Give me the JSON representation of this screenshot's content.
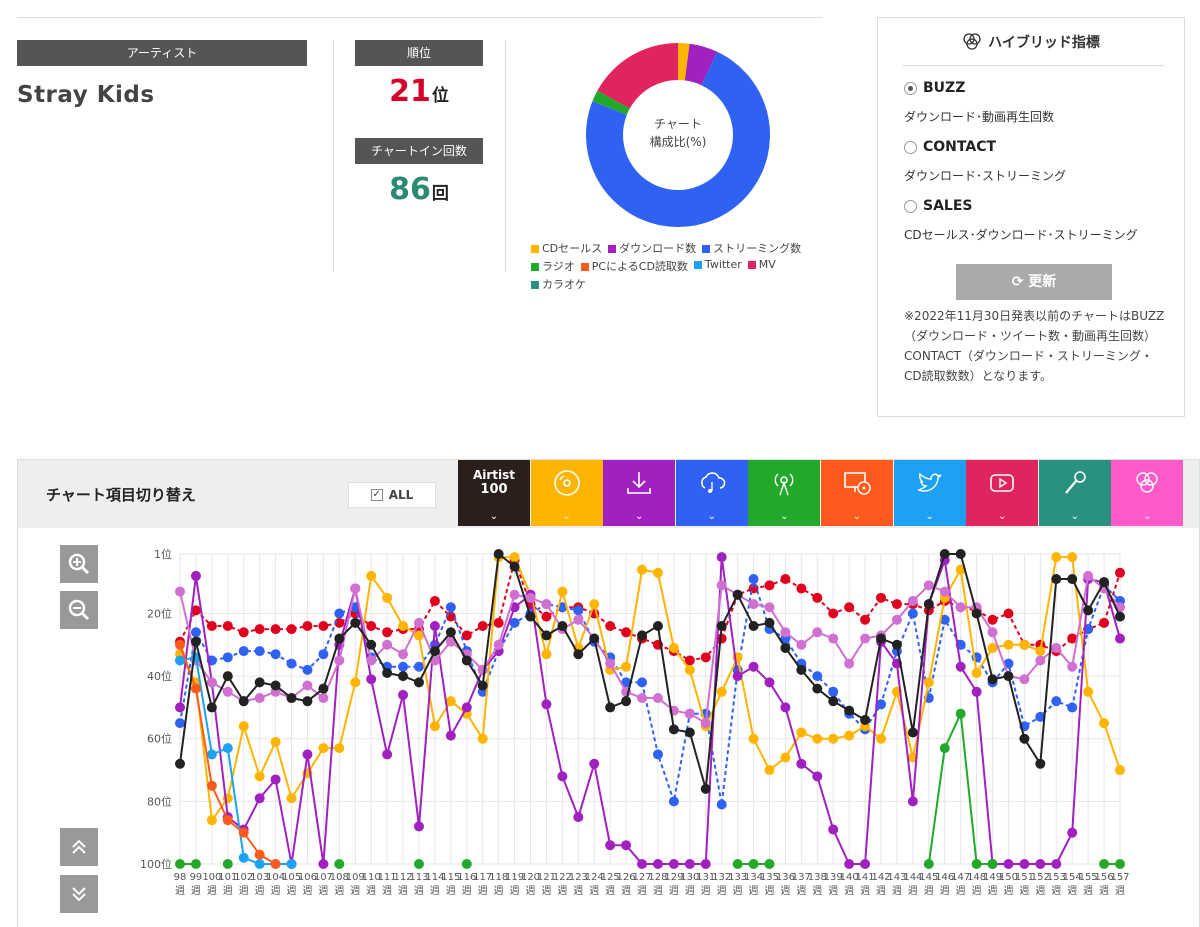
{
  "artist": {
    "header": "アーティスト",
    "name": "Stray Kids"
  },
  "rank": {
    "header": "順位",
    "value": "21",
    "unit": "位"
  },
  "chartin": {
    "header": "チャートイン回数",
    "value": "86",
    "unit": "回"
  },
  "donut": {
    "center_line1": "チャート",
    "center_line2": "構成比(%)",
    "legend": [
      {
        "label": "CDセールス",
        "color": "#ffb400"
      },
      {
        "label": "ダウンロード数",
        "color": "#a020c0"
      },
      {
        "label": "ストリーミング数",
        "color": "#2f62f3"
      },
      {
        "label": "ラジオ",
        "color": "#22a82a"
      },
      {
        "label": "PCによるCD読取数",
        "color": "#ff5a1e"
      },
      {
        "label": "Twitter",
        "color": "#1da1f2"
      },
      {
        "label": "MV",
        "color": "#e0245e"
      },
      {
        "label": "カラオケ",
        "color": "#2a9080"
      }
    ]
  },
  "hybrid": {
    "title": "ハイブリッド指標",
    "options": [
      {
        "label": "BUZZ",
        "desc": "ダウンロード･動画再生回数",
        "selected": true
      },
      {
        "label": "CONTACT",
        "desc": "ダウンロード･ストリーミング",
        "selected": false
      },
      {
        "label": "SALES",
        "desc": "CDセールス･ダウンロード･ストリーミング",
        "selected": false
      }
    ],
    "refresh_label": "更新",
    "note": "※2022年11月30日発表以前のチャートはBUZZ（ダウンロード・ツイート数・動画再生回数）CONTACT（ダウンロード・ストリーミング・CD読取数数）となります。"
  },
  "panel": {
    "title": "チャート項目切り替え",
    "all_label": "ALL",
    "tabs": [
      {
        "label": "Airtist",
        "label2": "100",
        "icon": "text",
        "color": "#2a1f1a"
      },
      {
        "icon": "cd-icon",
        "color": "#ffb400"
      },
      {
        "icon": "download-icon",
        "color": "#a020c0"
      },
      {
        "icon": "cloud-music-icon",
        "color": "#2f62f3"
      },
      {
        "icon": "radio-antenna-icon",
        "color": "#22a82a"
      },
      {
        "icon": "pc-cd-icon",
        "color": "#ff5a1e"
      },
      {
        "icon": "twitter-icon",
        "color": "#1da1f2"
      },
      {
        "icon": "youtube-icon",
        "color": "#e0245e"
      },
      {
        "icon": "microphone-icon",
        "color": "#2a9080"
      },
      {
        "icon": "hybrid-icon",
        "color": "#ff5ac8"
      }
    ]
  },
  "chart_data": {
    "type": "line",
    "y_axis_inverted": true,
    "ylim": [
      100,
      1
    ],
    "yticks": [
      "1位",
      "20位",
      "40位",
      "60位",
      "80位",
      "100位"
    ],
    "x_labels": [
      "98",
      "99",
      "100",
      "101",
      "102",
      "103",
      "104",
      "105",
      "106",
      "107",
      "108",
      "109",
      "110",
      "111",
      "112",
      "113",
      "114",
      "115",
      "116",
      "117",
      "118",
      "119",
      "120",
      "121",
      "122",
      "123",
      "124",
      "125",
      "126",
      "127",
      "128",
      "129",
      "130",
      "131",
      "132",
      "133",
      "134",
      "135",
      "136",
      "137",
      "138",
      "139",
      "140",
      "141",
      "142",
      "143",
      "144",
      "145",
      "146",
      "147",
      "148",
      "149",
      "150",
      "151",
      "152",
      "153",
      "154",
      "155",
      "156",
      "157"
    ],
    "x_suffix": "週",
    "series": [
      {
        "color": "#e0001e",
        "values": [
          29,
          19,
          24,
          24,
          26,
          25,
          25,
          25,
          24,
          24,
          23,
          20,
          24,
          26,
          25,
          25,
          16,
          21,
          27,
          24,
          23,
          3,
          17,
          21,
          18,
          18,
          20,
          24,
          26,
          28,
          30,
          32,
          35,
          34,
          28,
          14,
          12,
          11,
          9,
          12,
          15,
          20,
          18,
          22,
          15,
          17,
          17,
          19,
          16,
          18,
          19,
          22,
          20,
          30,
          30,
          32,
          28,
          25,
          23,
          7
        ],
        "dashed": true
      },
      {
        "color": "#2f62f3",
        "values": [
          55,
          26,
          35,
          34,
          32,
          32,
          33,
          36,
          38,
          33,
          20,
          18,
          34,
          37,
          37,
          37,
          30,
          18,
          32,
          45,
          32,
          23,
          20,
          17,
          18,
          19,
          29,
          34,
          42,
          42,
          65,
          80,
          52,
          52,
          81,
          38,
          9,
          25,
          28,
          36,
          40,
          45,
          52,
          57,
          49,
          32,
          20,
          47,
          22,
          30,
          34,
          42,
          36,
          56,
          53,
          48,
          50,
          25,
          11,
          16
        ],
        "dashed": true
      },
      {
        "color": "#ffb400",
        "values": [
          33,
          42,
          86,
          79,
          56,
          72,
          61,
          79,
          71,
          63,
          63,
          42,
          8,
          15,
          24,
          27,
          56,
          48,
          52,
          60,
          2,
          2,
          14,
          33,
          13,
          31,
          17,
          38,
          37,
          6,
          7,
          31,
          38,
          56,
          45,
          34,
          60,
          70,
          66,
          58,
          60,
          60,
          59,
          56,
          60,
          45,
          66,
          42,
          15,
          6,
          39,
          31,
          30,
          30,
          32,
          2,
          2,
          45,
          55,
          70
        ]
      },
      {
        "color": "#a020c0",
        "values": [
          50,
          8,
          42,
          85,
          89,
          79,
          73,
          100,
          65,
          100,
          30,
          12,
          41,
          65,
          46,
          88,
          24,
          59,
          50,
          38,
          32,
          18,
          14,
          49,
          72,
          85,
          68,
          94,
          94,
          100,
          100,
          100,
          100,
          100,
          2,
          40,
          37,
          42,
          50,
          68,
          72,
          89,
          100,
          100,
          29,
          36,
          80,
          17,
          3,
          37,
          45,
          100,
          100,
          100,
          100,
          100,
          90,
          9,
          10,
          28
        ]
      },
      {
        "color": "#d070d0",
        "values": [
          13,
          35,
          42,
          45,
          48,
          47,
          45,
          47,
          43,
          47,
          35,
          12,
          35,
          30,
          33,
          23,
          35,
          29,
          33,
          38,
          30,
          14,
          15,
          17,
          25,
          22,
          28,
          36,
          45,
          47,
          47,
          51,
          52,
          55,
          11,
          14,
          17,
          18,
          26,
          30,
          26,
          28,
          36,
          28,
          27,
          22,
          16,
          11,
          13,
          18,
          18,
          26,
          40,
          41,
          35,
          31,
          37,
          8,
          12,
          18
        ]
      },
      {
        "color": "#1da1f2",
        "values": [
          35,
          34,
          65,
          63,
          98,
          100,
          100,
          100,
          null,
          null,
          null,
          null,
          null,
          null,
          null,
          null,
          null,
          null,
          null,
          null,
          null,
          null,
          null,
          null,
          null,
          null,
          null,
          null,
          null,
          null,
          null,
          null,
          null,
          null,
          null,
          null,
          null,
          null,
          null,
          null,
          null,
          null,
          null,
          null,
          null,
          null,
          null,
          null,
          null,
          null,
          null,
          null,
          null,
          null,
          null,
          null,
          null,
          null,
          null,
          null
        ]
      },
      {
        "color": "#ff5a1e",
        "values": [
          30,
          44,
          75,
          86,
          90,
          97,
          100,
          null,
          null,
          null,
          null,
          null,
          null,
          null,
          null,
          null,
          null,
          null,
          null,
          null,
          null,
          null,
          null,
          null,
          null,
          null,
          null,
          null,
          null,
          null,
          null,
          null,
          null,
          null,
          null,
          null,
          null,
          null,
          null,
          null,
          null,
          null,
          null,
          null,
          null,
          null,
          null,
          null,
          null,
          null,
          null,
          null,
          null,
          null,
          null,
          null,
          null,
          null,
          null,
          null
        ]
      },
      {
        "color": "#22a82a",
        "values": [
          100,
          100,
          null,
          100,
          null,
          null,
          null,
          null,
          null,
          null,
          100,
          null,
          null,
          null,
          null,
          100,
          null,
          null,
          100,
          null,
          null,
          null,
          null,
          null,
          null,
          null,
          null,
          null,
          null,
          null,
          null,
          null,
          null,
          null,
          null,
          100,
          100,
          100,
          null,
          null,
          null,
          null,
          null,
          null,
          null,
          null,
          null,
          100,
          63,
          52,
          100,
          100,
          null,
          null,
          null,
          null,
          null,
          null,
          100,
          100
        ]
      },
      {
        "color": "#222222",
        "values": [
          68,
          29,
          50,
          40,
          48,
          42,
          43,
          47,
          48,
          44,
          28,
          23,
          30,
          39,
          40,
          42,
          32,
          26,
          35,
          43,
          1,
          5,
          21,
          27,
          24,
          33,
          28,
          50,
          48,
          27,
          24,
          57,
          58,
          76,
          24,
          14,
          24,
          23,
          31,
          38,
          44,
          48,
          51,
          54,
          28,
          30,
          58,
          17,
          1,
          1,
          20,
          41,
          40,
          60,
          68,
          9,
          9,
          19,
          10,
          21
        ]
      }
    ]
  },
  "side_buttons": [
    "zoom-in-icon",
    "zoom-out-icon",
    "scroll-top-icon",
    "scroll-bottom-icon"
  ]
}
